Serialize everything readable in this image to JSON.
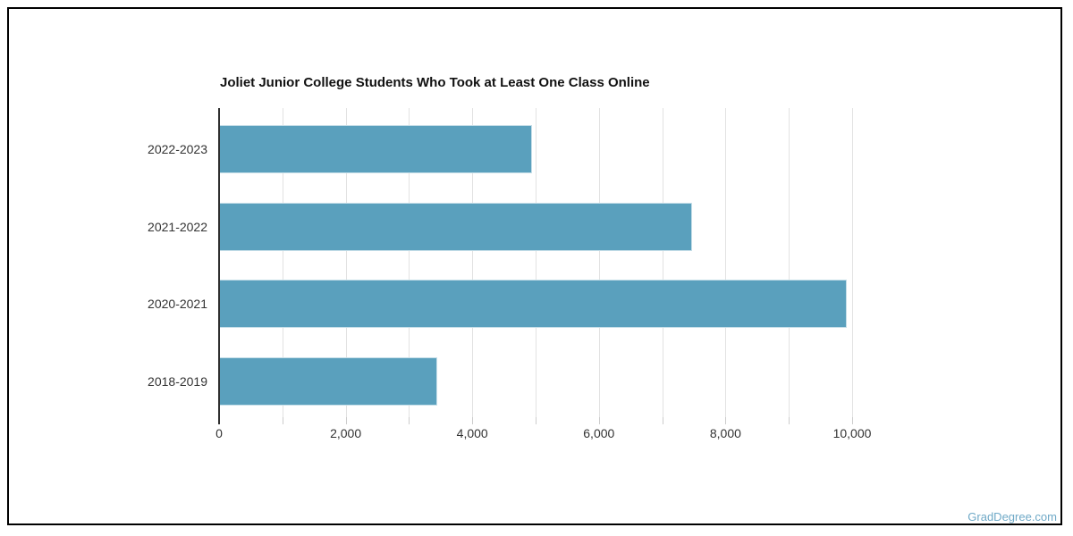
{
  "page": {
    "watermark": "GradDegree.com"
  },
  "chart_data": {
    "type": "bar",
    "orientation": "horizontal",
    "title": "Joliet Junior College Students Who Took at Least One Class Online",
    "categories": [
      "2022-2023",
      "2021-2022",
      "2020-2021",
      "2018-2019"
    ],
    "values": [
      4950,
      7470,
      9920,
      3440
    ],
    "xlabel": "",
    "ylabel": "",
    "xlim": [
      0,
      10000
    ],
    "x_ticks": [
      0,
      2000,
      4000,
      6000,
      8000,
      10000
    ],
    "x_tick_labels": [
      "0",
      "2,000",
      "4,000",
      "6,000",
      "8,000",
      "10,000"
    ],
    "gridline_interval": 1000,
    "grid": true,
    "legend": "none",
    "bar_color": "#5aa0bd",
    "axis_color": "#2f2f2f",
    "gridline_color": "#e2e2e2",
    "label_color": "#333333",
    "watermark_color": "#6fa9c7"
  }
}
